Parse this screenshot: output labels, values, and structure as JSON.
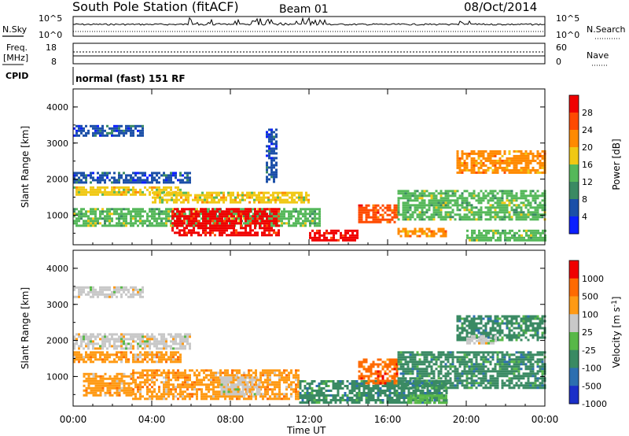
{
  "header": {
    "station": "South Pole Station (fitACF)",
    "beam": "Beam 01",
    "date": "08/Oct/2014"
  },
  "summary_panels": {
    "nsky_label": "N.Sky",
    "nsearch_label": "N.Search",
    "noise_ticks_left": [
      "10^5",
      "10^0"
    ],
    "noise_ticks_right": [
      "10^5",
      "10^0"
    ],
    "freq_label_1": "Freq.",
    "freq_label_2": "[MHz]",
    "freq_ticks": [
      "18",
      "8"
    ],
    "nave_label": "Nave",
    "nave_ticks": [
      "60",
      "0"
    ],
    "cpid_label": "CPID",
    "cpid_text": "normal (fast) 151 RF"
  },
  "chart_data": [
    {
      "type": "heatmap",
      "name": "power",
      "ylabel": "Slant Range [km]",
      "ylim": [
        180,
        4500
      ],
      "yticks": [
        "1000",
        "2000",
        "3000",
        "4000"
      ],
      "xlabel": "Time UT",
      "xticks": [
        "00:00",
        "04:00",
        "08:00",
        "12:00",
        "16:00",
        "20:00",
        "00:00"
      ],
      "colorbar_label": "Power [dB]",
      "colorbar_ticks": [
        "28",
        "24",
        "20",
        "16",
        "12",
        "8",
        "4"
      ],
      "colors": [
        "#0b1fff",
        "#1b4fa8",
        "#3a8a63",
        "#55b85a",
        "#f0c814",
        "#ff8a00",
        "#ff4a00",
        "#f00000"
      ],
      "echo_regions": [
        {
          "t0": 0.0,
          "t1": 3.5,
          "r0": 3200,
          "r1": 3500,
          "level": 1
        },
        {
          "t0": 0.0,
          "t1": 6.0,
          "r0": 1900,
          "r1": 2200,
          "level": 1
        },
        {
          "t0": 0.0,
          "t1": 5.5,
          "r0": 1550,
          "r1": 1800,
          "level": 4
        },
        {
          "t0": 4.0,
          "t1": 12.0,
          "r0": 1350,
          "r1": 1650,
          "level": 4
        },
        {
          "t0": 0.0,
          "t1": 12.5,
          "r0": 700,
          "r1": 1200,
          "level": 3
        },
        {
          "t0": 5.0,
          "t1": 10.5,
          "r0": 450,
          "r1": 1200,
          "level": 7
        },
        {
          "t0": 9.8,
          "t1": 10.4,
          "r0": 1950,
          "r1": 3400,
          "level": 1
        },
        {
          "t0": 12.0,
          "t1": 14.5,
          "r0": 300,
          "r1": 600,
          "level": 7
        },
        {
          "t0": 14.5,
          "t1": 16.5,
          "r0": 800,
          "r1": 1300,
          "level": 6
        },
        {
          "t0": 16.5,
          "t1": 19.0,
          "r0": 400,
          "r1": 650,
          "level": 5
        },
        {
          "t0": 16.5,
          "t1": 24.0,
          "r0": 900,
          "r1": 1700,
          "level": 3
        },
        {
          "t0": 19.5,
          "t1": 24.0,
          "r0": 2200,
          "r1": 2800,
          "level": 5
        },
        {
          "t0": 20.0,
          "t1": 24.0,
          "r0": 300,
          "r1": 600,
          "level": 3
        }
      ]
    },
    {
      "type": "heatmap",
      "name": "velocity",
      "ylabel": "Slant Range [km]",
      "ylim": [
        180,
        4500
      ],
      "yticks": [
        "1000",
        "2000",
        "3000",
        "4000"
      ],
      "xlabel": "Time UT",
      "xticks": [
        "00:00",
        "04:00",
        "08:00",
        "12:00",
        "16:00",
        "20:00",
        "00:00"
      ],
      "colorbar_label": "Velocity [m s",
      "colorbar_unit_superscript": "-1",
      "colorbar_ticks": [
        "1000",
        "500",
        "100",
        "25",
        "-25",
        "-100",
        "-500",
        "-1000"
      ],
      "colors": [
        "#1b2fc8",
        "#2c6fb0",
        "#3a8a63",
        "#58b848",
        "#c8c8c8",
        "#ff9a14",
        "#ff6a00",
        "#f00000"
      ],
      "echo_regions": [
        {
          "t0": 0.0,
          "t1": 3.5,
          "r0": 3200,
          "r1": 3500,
          "level": 4
        },
        {
          "t0": 0.0,
          "t1": 6.0,
          "r0": 1800,
          "r1": 2200,
          "level": 4
        },
        {
          "t0": 0.0,
          "t1": 5.5,
          "r0": 1400,
          "r1": 1700,
          "level": 5
        },
        {
          "t0": 0.5,
          "t1": 3.0,
          "r0": 500,
          "r1": 1100,
          "level": 5
        },
        {
          "t0": 3.0,
          "t1": 11.5,
          "r0": 400,
          "r1": 1200,
          "level": 5
        },
        {
          "t0": 7.5,
          "t1": 9.5,
          "r0": 500,
          "r1": 1000,
          "level": 4
        },
        {
          "t0": 11.5,
          "t1": 19.0,
          "r0": 300,
          "r1": 900,
          "level": 2
        },
        {
          "t0": 14.5,
          "t1": 16.5,
          "r0": 800,
          "r1": 1500,
          "level": 6
        },
        {
          "t0": 16.5,
          "t1": 24.0,
          "r0": 700,
          "r1": 1700,
          "level": 2
        },
        {
          "t0": 17.0,
          "t1": 19.0,
          "r0": 300,
          "r1": 500,
          "level": 3
        },
        {
          "t0": 19.5,
          "t1": 24.0,
          "r0": 2000,
          "r1": 2700,
          "level": 2
        },
        {
          "t0": 20.0,
          "t1": 21.5,
          "r0": 1950,
          "r1": 2150,
          "level": 4
        }
      ]
    }
  ]
}
